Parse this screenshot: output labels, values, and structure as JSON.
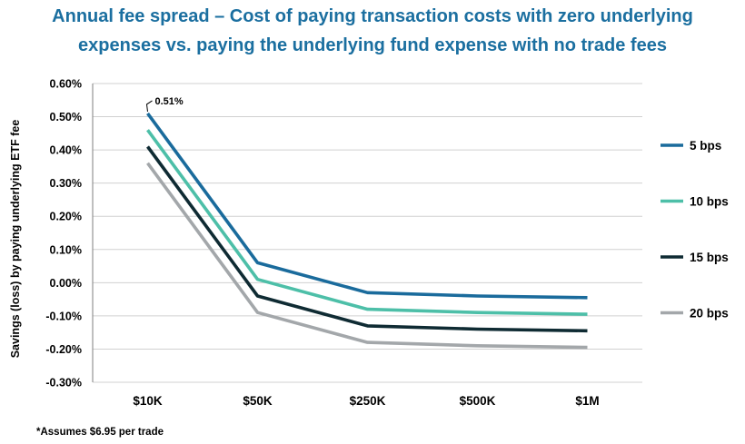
{
  "title_line1": "Annual fee spread – Cost of paying transaction costs with zero underlying",
  "title_line2": "expenses vs. paying the underlying fund expense with no trade fees",
  "footnote": "*Assumes $6.95 per trade",
  "colors": {
    "title": "#1b6fa0",
    "axis": "#7f7f7f",
    "grid": "#d0d0d0"
  },
  "chart_data": {
    "type": "line",
    "title": "",
    "xlabel": "",
    "ylabel": "Savings (loss) by paying underlying ETF fee",
    "categories": [
      "$10K",
      "$50K",
      "$250K",
      "$500K",
      "$1M"
    ],
    "ylim": [
      -0.3,
      0.6
    ],
    "yticks": [
      -0.3,
      -0.2,
      -0.1,
      0.0,
      0.1,
      0.2,
      0.3,
      0.4,
      0.5,
      0.6
    ],
    "ytick_labels": [
      "-0.30%",
      "-0.20%",
      "-0.10%",
      "0.00%",
      "0.10%",
      "0.20%",
      "0.30%",
      "0.40%",
      "0.50%",
      "0.60%"
    ],
    "y_unit": "%",
    "grid": "horizontal",
    "legend_position": "right",
    "series": [
      {
        "name": "5 bps",
        "color": "#1a6b9c",
        "values": [
          0.51,
          0.06,
          -0.03,
          -0.04,
          -0.045
        ]
      },
      {
        "name": "10 bps",
        "color": "#4dbfa8",
        "values": [
          0.46,
          0.01,
          -0.08,
          -0.09,
          -0.095
        ]
      },
      {
        "name": "15 bps",
        "color": "#0f2b33",
        "values": [
          0.41,
          -0.04,
          -0.13,
          -0.14,
          -0.145
        ]
      },
      {
        "name": "20 bps",
        "color": "#a3a7aa",
        "values": [
          0.36,
          -0.09,
          -0.18,
          -0.19,
          -0.195
        ]
      }
    ],
    "annotations": [
      {
        "text": "0.51%",
        "series": "5 bps",
        "category": "$10K"
      }
    ]
  }
}
